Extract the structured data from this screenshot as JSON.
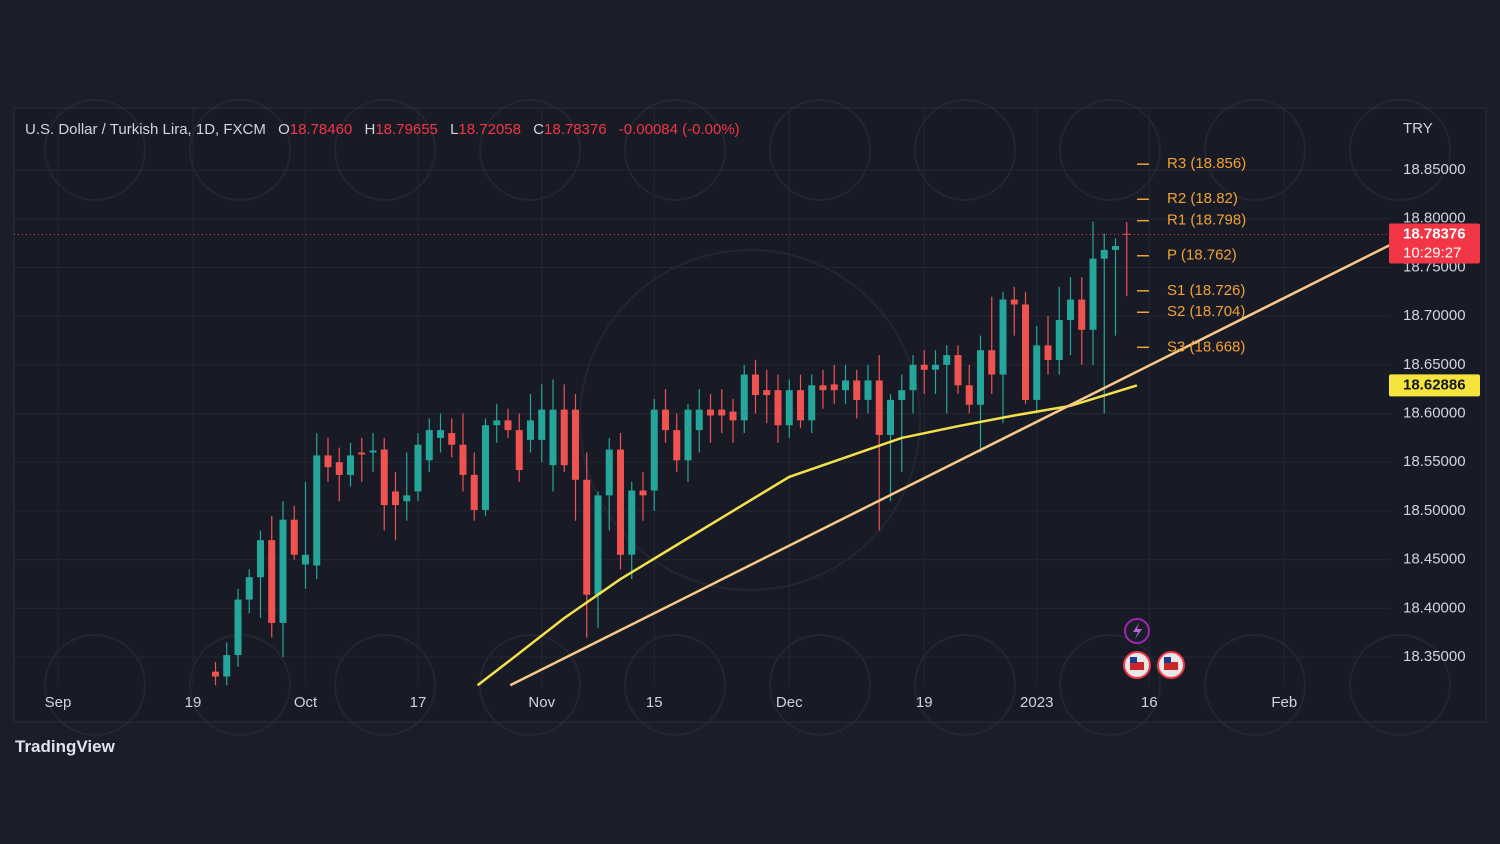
{
  "chart_data": {
    "type": "candlestick",
    "title": "U.S. Dollar / Turkish Lira, 1D, FXCM",
    "ohlc_labels": [
      {
        "key": "O",
        "value": "18.78460"
      },
      {
        "key": "H",
        "value": "18.79655"
      },
      {
        "key": "L",
        "value": "18.72058"
      },
      {
        "key": "C",
        "value": "18.78376"
      }
    ],
    "change": "-0.00084 (-0.00%)",
    "currency": "TRY",
    "up_color": "#26a69a",
    "down_color": "#ef5350",
    "grid": true,
    "xlim": [
      -3.91,
      118.4
    ],
    "ylim": [
      18.3213,
      18.9137
    ],
    "xticks": [
      {
        "value": 0,
        "label": "Sep"
      },
      {
        "value": 12,
        "label": "19"
      },
      {
        "value": 22,
        "label": "Oct"
      },
      {
        "value": 32,
        "label": "17"
      },
      {
        "value": 43,
        "label": "Nov"
      },
      {
        "value": 53,
        "label": "15"
      },
      {
        "value": 65,
        "label": "Dec"
      },
      {
        "value": 77,
        "label": "19"
      },
      {
        "value": 87,
        "label": "2023"
      },
      {
        "value": 97,
        "label": "16"
      },
      {
        "value": 109,
        "label": "Feb"
      }
    ],
    "yticks": [
      {
        "value": 18.35,
        "label": "18.35000"
      },
      {
        "value": 18.4,
        "label": "18.40000"
      },
      {
        "value": 18.45,
        "label": "18.45000"
      },
      {
        "value": 18.5,
        "label": "18.50000"
      },
      {
        "value": 18.55,
        "label": "18.55000"
      },
      {
        "value": 18.6,
        "label": "18.60000"
      },
      {
        "value": 18.65,
        "label": "18.65000"
      },
      {
        "value": 18.7,
        "label": "18.70000"
      },
      {
        "value": 18.75,
        "label": "18.75000"
      },
      {
        "value": 18.8,
        "label": "18.80000"
      },
      {
        "value": 18.85,
        "label": "18.85000"
      }
    ],
    "x": [
      14,
      15,
      16,
      17,
      18,
      19,
      20,
      21,
      22,
      23,
      24,
      25,
      26,
      27,
      28,
      29,
      30,
      31,
      32,
      33,
      34,
      35,
      36,
      37,
      38,
      39,
      40,
      41,
      42,
      43,
      44,
      45,
      46,
      47,
      48,
      49,
      50,
      51,
      52,
      53,
      54,
      55,
      56,
      57,
      58,
      59,
      60,
      61,
      62,
      63,
      64,
      65,
      66,
      67,
      68,
      69,
      70,
      71,
      72,
      73,
      74,
      75,
      76,
      77,
      78,
      79,
      80,
      81,
      82,
      83,
      84,
      85,
      86,
      87,
      88,
      89,
      90,
      91,
      92,
      93,
      94,
      95
    ],
    "open": [
      18.335,
      18.33,
      18.352,
      18.409,
      18.432,
      18.47,
      18.385,
      18.491,
      18.445,
      18.444,
      18.557,
      18.55,
      18.537,
      18.56,
      18.56,
      18.563,
      18.52,
      18.51,
      18.52,
      18.552,
      18.575,
      18.58,
      18.568,
      18.537,
      18.501,
      18.588,
      18.593,
      18.583,
      18.573,
      18.573,
      18.547,
      18.604,
      18.604,
      18.532,
      18.414,
      18.516,
      18.563,
      18.455,
      18.521,
      18.521,
      18.604,
      18.583,
      18.552,
      18.583,
      18.604,
      18.604,
      18.602,
      18.593,
      18.64,
      18.624,
      18.624,
      18.588,
      18.624,
      18.593,
      18.629,
      18.63,
      18.624,
      18.634,
      18.614,
      18.634,
      18.578,
      18.614,
      18.624,
      18.65,
      18.645,
      18.65,
      18.66,
      18.629,
      18.609,
      18.665,
      18.64,
      18.717,
      18.712,
      18.614,
      18.67,
      18.655,
      18.696,
      18.717,
      18.686,
      18.759,
      18.768,
      18.7846
    ],
    "high": [
      18.345,
      18.365,
      18.42,
      18.44,
      18.48,
      18.495,
      18.51,
      18.505,
      18.53,
      18.58,
      18.575,
      18.565,
      18.57,
      18.575,
      18.58,
      18.575,
      18.54,
      18.56,
      18.58,
      18.595,
      18.6,
      18.595,
      18.6,
      18.56,
      18.595,
      18.61,
      18.605,
      18.6,
      18.62,
      18.63,
      18.635,
      18.63,
      18.62,
      18.56,
      18.52,
      18.575,
      18.58,
      18.53,
      18.54,
      18.615,
      18.625,
      18.6,
      18.61,
      18.625,
      18.62,
      18.625,
      18.615,
      18.65,
      18.655,
      18.645,
      18.64,
      18.635,
      18.64,
      18.64,
      18.645,
      18.65,
      18.65,
      18.645,
      18.65,
      18.66,
      18.62,
      18.64,
      18.66,
      18.665,
      18.665,
      18.67,
      18.67,
      18.65,
      18.68,
      18.72,
      18.725,
      18.73,
      18.725,
      18.69,
      18.7,
      18.73,
      18.74,
      18.74,
      18.797,
      18.785,
      18.78,
      18.79655
    ],
    "low": [
      18.321,
      18.321,
      18.34,
      18.395,
      18.39,
      18.37,
      18.35,
      18.45,
      18.42,
      18.43,
      18.53,
      18.51,
      18.525,
      18.53,
      18.54,
      18.48,
      18.47,
      18.49,
      18.51,
      18.54,
      18.56,
      18.555,
      18.52,
      18.49,
      18.495,
      18.57,
      18.575,
      18.53,
      18.56,
      18.55,
      18.52,
      18.54,
      18.49,
      18.37,
      18.38,
      18.48,
      18.44,
      18.43,
      18.49,
      18.5,
      18.57,
      18.54,
      18.53,
      18.56,
      18.57,
      18.58,
      18.57,
      18.58,
      18.6,
      18.59,
      18.57,
      18.575,
      18.585,
      18.58,
      18.605,
      18.61,
      18.61,
      18.595,
      18.6,
      18.48,
      18.51,
      18.54,
      18.6,
      18.62,
      18.62,
      18.6,
      18.62,
      18.6,
      18.56,
      18.62,
      18.59,
      18.68,
      18.61,
      18.6,
      18.64,
      18.64,
      18.66,
      18.65,
      18.65,
      18.6,
      18.68,
      18.72058
    ],
    "close": [
      18.33,
      18.352,
      18.409,
      18.432,
      18.47,
      18.385,
      18.491,
      18.455,
      18.455,
      18.557,
      18.545,
      18.537,
      18.557,
      18.558,
      18.562,
      18.506,
      18.506,
      18.516,
      18.568,
      18.583,
      18.583,
      18.568,
      18.537,
      18.501,
      18.588,
      18.593,
      18.583,
      18.542,
      18.593,
      18.604,
      18.604,
      18.547,
      18.532,
      18.414,
      18.516,
      18.563,
      18.455,
      18.521,
      18.516,
      18.604,
      18.583,
      18.552,
      18.604,
      18.604,
      18.598,
      18.598,
      18.593,
      18.64,
      18.619,
      18.619,
      18.588,
      18.624,
      18.593,
      18.629,
      18.624,
      18.624,
      18.634,
      18.614,
      18.634,
      18.578,
      18.614,
      18.624,
      18.65,
      18.645,
      18.65,
      18.66,
      18.629,
      18.609,
      18.665,
      18.64,
      18.717,
      18.712,
      18.614,
      18.67,
      18.655,
      18.696,
      18.717,
      18.686,
      18.759,
      18.768,
      18.772,
      18.78376
    ],
    "moving_average": {
      "color": "#f2e14c",
      "x": [
        37.3,
        40,
        45,
        50,
        55,
        60,
        65,
        70,
        75,
        80,
        85,
        90,
        95.9
      ],
      "values": [
        18.321,
        18.345,
        18.39,
        18.43,
        18.465,
        18.5,
        18.535,
        18.555,
        18.575,
        18.587,
        18.598,
        18.608,
        18.62886
      ]
    },
    "trendline": {
      "color": "#f7c98b",
      "x": [
        40.2,
        118.4
      ],
      "values": [
        18.321,
        18.773
      ]
    },
    "pivots": [
      {
        "label": "R3 (18.856)",
        "value": 18.856
      },
      {
        "label": "R2 (18.82)",
        "value": 18.82
      },
      {
        "label": "R1 (18.798)",
        "value": 18.798
      },
      {
        "label": "P (18.762)",
        "value": 18.762
      },
      {
        "label": "S1 (18.726)",
        "value": 18.726
      },
      {
        "label": "S2 (18.704)",
        "value": 18.704
      },
      {
        "label": "S3 (18.668)",
        "value": 18.668
      }
    ],
    "pivot_color": "#f0a235",
    "price_labels": [
      {
        "value": 18.78376,
        "label": "18.78376",
        "sub": "10:29:27",
        "color": "#f23645",
        "text_color": "#ffffff"
      },
      {
        "value": 18.62886,
        "label": "18.62886",
        "color": "#f5e43c",
        "text_color": "#131722"
      }
    ],
    "branding": "TradingView"
  }
}
